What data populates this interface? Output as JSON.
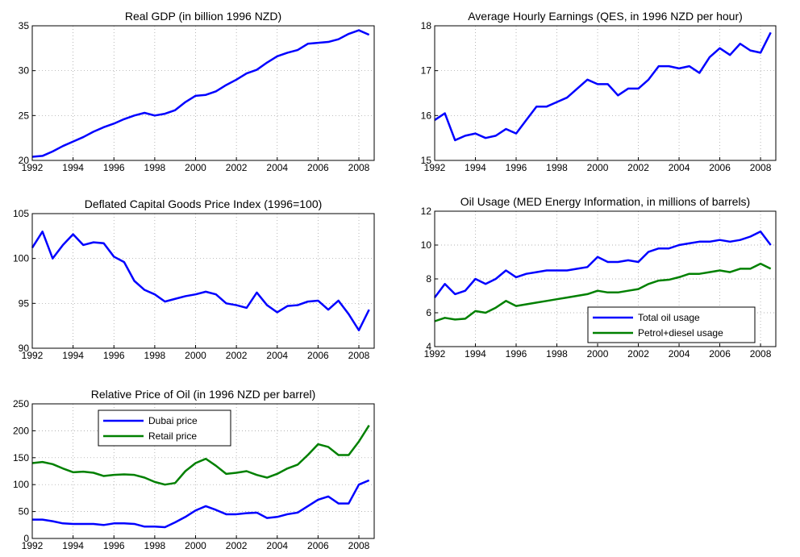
{
  "chart_data": [
    {
      "type": "line",
      "title": "Real GDP (in billion 1996 NZD)",
      "x": [
        1992,
        1992.5,
        1993,
        1993.5,
        1994,
        1994.5,
        1995,
        1995.5,
        1996,
        1996.5,
        1997,
        1997.5,
        1998,
        1998.5,
        1999,
        1999.5,
        2000,
        2000.5,
        2001,
        2001.5,
        2002,
        2002.5,
        2003,
        2003.5,
        2004,
        2004.5,
        2005,
        2005.5,
        2006,
        2006.5,
        2007,
        2007.5,
        2008,
        2008.5
      ],
      "series": [
        {
          "name": null,
          "color": "#0000ff",
          "values": [
            20.4,
            20.5,
            21.0,
            21.6,
            22.1,
            22.6,
            23.2,
            23.7,
            24.1,
            24.6,
            25.0,
            25.3,
            25.0,
            25.2,
            25.6,
            26.5,
            27.2,
            27.3,
            27.7,
            28.4,
            29.0,
            29.7,
            30.1,
            30.9,
            31.6,
            32.0,
            32.3,
            33.0,
            33.1,
            33.2,
            33.5,
            34.1,
            34.5,
            34.0
          ]
        }
      ],
      "xlim": [
        1992,
        2008.75
      ],
      "xticks": [
        1992,
        1994,
        1996,
        1998,
        2000,
        2002,
        2004,
        2006,
        2008
      ],
      "ylim": [
        20,
        35
      ],
      "yticks": [
        20,
        25,
        30,
        35
      ],
      "grid": true
    },
    {
      "type": "line",
      "title": "Average Hourly Earnings (QES, in 1996 NZD per hour)",
      "x": [
        1992,
        1992.5,
        1993,
        1993.5,
        1994,
        1994.5,
        1995,
        1995.5,
        1996,
        1996.5,
        1997,
        1997.5,
        1998,
        1998.5,
        1999,
        1999.5,
        2000,
        2000.5,
        2001,
        2001.5,
        2002,
        2002.5,
        2003,
        2003.5,
        2004,
        2004.5,
        2005,
        2005.5,
        2006,
        2006.5,
        2007,
        2007.5,
        2008,
        2008.5
      ],
      "series": [
        {
          "name": null,
          "color": "#0000ff",
          "values": [
            15.9,
            16.05,
            15.45,
            15.55,
            15.6,
            15.5,
            15.55,
            15.7,
            15.6,
            15.9,
            16.2,
            16.2,
            16.3,
            16.4,
            16.6,
            16.8,
            16.7,
            16.7,
            16.45,
            16.6,
            16.6,
            16.8,
            17.1,
            17.1,
            17.05,
            17.1,
            16.95,
            17.3,
            17.5,
            17.35,
            17.6,
            17.45,
            17.4,
            17.85
          ]
        }
      ],
      "xlim": [
        1992,
        2008.75
      ],
      "xticks": [
        1992,
        1994,
        1996,
        1998,
        2000,
        2002,
        2004,
        2006,
        2008
      ],
      "ylim": [
        15,
        18
      ],
      "yticks": [
        15,
        16,
        17,
        18
      ],
      "grid": true
    },
    {
      "type": "line",
      "title": "Deflated Capital Goods Price Index (1996=100)",
      "x": [
        1992,
        1992.5,
        1993,
        1993.5,
        1994,
        1994.5,
        1995,
        1995.5,
        1996,
        1996.5,
        1997,
        1997.5,
        1998,
        1998.5,
        1999,
        1999.5,
        2000,
        2000.5,
        2001,
        2001.5,
        2002,
        2002.5,
        2003,
        2003.5,
        2004,
        2004.5,
        2005,
        2005.5,
        2006,
        2006.5,
        2007,
        2007.5,
        2008,
        2008.5
      ],
      "series": [
        {
          "name": null,
          "color": "#0000ff",
          "values": [
            101.2,
            103.0,
            100.0,
            101.5,
            102.7,
            101.5,
            101.8,
            101.7,
            100.2,
            99.6,
            97.5,
            96.5,
            96.0,
            95.2,
            95.5,
            95.8,
            96.0,
            96.3,
            96.0,
            95.0,
            94.8,
            94.5,
            96.2,
            94.8,
            94.0,
            94.7,
            94.8,
            95.2,
            95.3,
            94.3,
            95.3,
            93.8,
            92.0,
            94.3
          ]
        }
      ],
      "xlim": [
        1992,
        2008.75
      ],
      "xticks": [
        1992,
        1994,
        1996,
        1998,
        2000,
        2002,
        2004,
        2006,
        2008
      ],
      "ylim": [
        90,
        105
      ],
      "yticks": [
        90,
        95,
        100,
        105
      ],
      "grid": true
    },
    {
      "type": "line",
      "title": "Oil Usage (MED Energy Information, in millions of barrels)",
      "x": [
        1992,
        1992.5,
        1993,
        1993.5,
        1994,
        1994.5,
        1995,
        1995.5,
        1996,
        1996.5,
        1997,
        1997.5,
        1998,
        1998.5,
        1999,
        1999.5,
        2000,
        2000.5,
        2001,
        2001.5,
        2002,
        2002.5,
        2003,
        2003.5,
        2004,
        2004.5,
        2005,
        2005.5,
        2006,
        2006.5,
        2007,
        2007.5,
        2008,
        2008.5
      ],
      "series": [
        {
          "name": "Total oil usage",
          "color": "#0000ff",
          "values": [
            6.9,
            7.7,
            7.1,
            7.3,
            8.0,
            7.7,
            8.0,
            8.5,
            8.1,
            8.3,
            8.4,
            8.5,
            8.5,
            8.5,
            8.6,
            8.7,
            9.3,
            9.0,
            9.0,
            9.1,
            9.0,
            9.6,
            9.8,
            9.8,
            10.0,
            10.1,
            10.2,
            10.2,
            10.3,
            10.2,
            10.3,
            10.5,
            10.8,
            10.0
          ]
        },
        {
          "name": "Petrol+diesel usage",
          "color": "#008000",
          "values": [
            5.5,
            5.7,
            5.6,
            5.65,
            6.1,
            6.0,
            6.3,
            6.7,
            6.4,
            6.5,
            6.6,
            6.7,
            6.8,
            6.9,
            7.0,
            7.1,
            7.3,
            7.2,
            7.2,
            7.3,
            7.4,
            7.7,
            7.9,
            7.95,
            8.1,
            8.3,
            8.3,
            8.4,
            8.5,
            8.4,
            8.6,
            8.6,
            8.9,
            8.6
          ]
        }
      ],
      "xlim": [
        1992,
        2008.75
      ],
      "xticks": [
        1992,
        1994,
        1996,
        1998,
        2000,
        2002,
        2004,
        2006,
        2008
      ],
      "ylim": [
        4,
        12
      ],
      "yticks": [
        4,
        6,
        8,
        10,
        12
      ],
      "grid": true,
      "legend": "lower right"
    },
    {
      "type": "line",
      "title": "Relative Price of Oil (in 1996 NZD per barrel)",
      "x": [
        1992,
        1992.5,
        1993,
        1993.5,
        1994,
        1994.5,
        1995,
        1995.5,
        1996,
        1996.5,
        1997,
        1997.5,
        1998,
        1998.5,
        1999,
        1999.5,
        2000,
        2000.5,
        2001,
        2001.5,
        2002,
        2002.5,
        2003,
        2003.5,
        2004,
        2004.5,
        2005,
        2005.5,
        2006,
        2006.5,
        2007,
        2007.5,
        2008,
        2008.5
      ],
      "series": [
        {
          "name": "Dubai price",
          "color": "#0000ff",
          "values": [
            35,
            35,
            32,
            28,
            27,
            27,
            27,
            25,
            28,
            28,
            27,
            22,
            22,
            21,
            30,
            40,
            52,
            60,
            53,
            45,
            45,
            47,
            48,
            38,
            40,
            45,
            48,
            60,
            72,
            78,
            65,
            65,
            100,
            108
          ]
        },
        {
          "name": "Retail price",
          "color": "#008000",
          "values": [
            140,
            142,
            138,
            130,
            123,
            124,
            122,
            116,
            118,
            119,
            118,
            113,
            105,
            100,
            103,
            125,
            140,
            148,
            135,
            120,
            122,
            125,
            118,
            113,
            120,
            130,
            137,
            155,
            175,
            170,
            155,
            155,
            180,
            210
          ]
        }
      ],
      "xlim": [
        1992,
        2008.75
      ],
      "xticks": [
        1992,
        1994,
        1996,
        1998,
        2000,
        2002,
        2004,
        2006,
        2008
      ],
      "ylim": [
        0,
        250
      ],
      "yticks": [
        0,
        50,
        100,
        150,
        200,
        250
      ],
      "grid": true,
      "legend": "upper center"
    }
  ]
}
